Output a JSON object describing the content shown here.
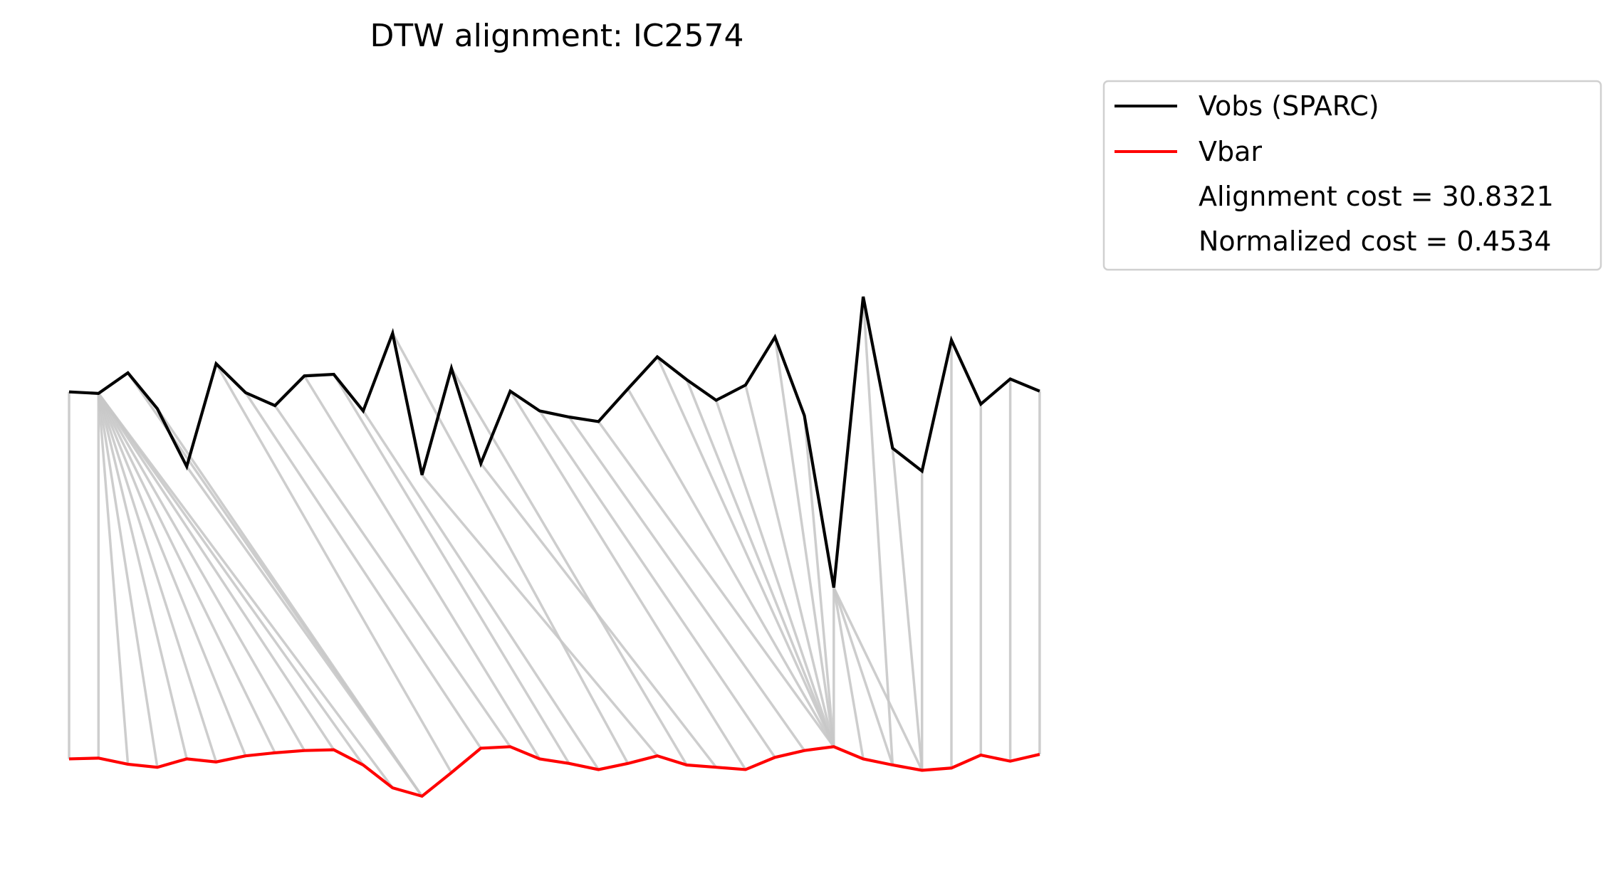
{
  "chart_data": {
    "type": "line",
    "title": "DTW alignment: IC2574",
    "xlabel": "",
    "ylabel": "",
    "axes_visible": false,
    "grid": false,
    "legend_position": "outside-top-right",
    "x": [
      0,
      1,
      2,
      3,
      4,
      5,
      6,
      7,
      8,
      9,
      10,
      11,
      12,
      13,
      14,
      15,
      16,
      17,
      18,
      19,
      20,
      21,
      22,
      23,
      24,
      25,
      26,
      27,
      28,
      29,
      30,
      31,
      32,
      33
    ],
    "series": [
      {
        "name": "Vobs (SPARC)",
        "color": "#000000",
        "values": [
          0.49,
          0.488,
          0.515,
          0.468,
          0.392,
          0.527,
          0.489,
          0.472,
          0.511,
          0.513,
          0.465,
          0.567,
          0.381,
          0.521,
          0.396,
          0.491,
          0.465,
          0.457,
          0.451,
          0.494,
          0.536,
          0.506,
          0.479,
          0.499,
          0.562,
          0.459,
          0.233,
          0.615,
          0.416,
          0.386,
          0.558,
          0.474,
          0.507,
          0.491
        ]
      },
      {
        "name": "Vbar",
        "color": "#ff0000",
        "values": [
          0.008,
          0.009,
          0.001,
          -0.003,
          0.008,
          0.004,
          0.012,
          0.016,
          0.019,
          0.02,
          0.0,
          -0.03,
          -0.041,
          -0.01,
          0.022,
          0.024,
          0.008,
          0.002,
          -0.006,
          0.002,
          0.012,
          0.0,
          -0.003,
          -0.006,
          0.01,
          0.019,
          0.024,
          0.008,
          0.0,
          -0.007,
          -0.004,
          0.013,
          0.005,
          0.014
        ]
      }
    ],
    "alignment": {
      "color": "#c8c8c8",
      "pairs": [
        [
          0,
          0
        ],
        [
          1,
          1
        ],
        [
          1,
          2
        ],
        [
          1,
          3
        ],
        [
          1,
          4
        ],
        [
          1,
          5
        ],
        [
          1,
          6
        ],
        [
          1,
          7
        ],
        [
          1,
          8
        ],
        [
          1,
          9
        ],
        [
          1,
          10
        ],
        [
          1,
          11
        ],
        [
          2,
          12
        ],
        [
          3,
          12
        ],
        [
          4,
          12
        ],
        [
          5,
          13
        ],
        [
          6,
          14
        ],
        [
          7,
          15
        ],
        [
          8,
          16
        ],
        [
          9,
          17
        ],
        [
          10,
          18
        ],
        [
          11,
          19
        ],
        [
          12,
          20
        ],
        [
          13,
          21
        ],
        [
          14,
          22
        ],
        [
          15,
          23
        ],
        [
          16,
          24
        ],
        [
          17,
          25
        ],
        [
          18,
          26
        ],
        [
          19,
          26
        ],
        [
          20,
          26
        ],
        [
          21,
          26
        ],
        [
          22,
          26
        ],
        [
          23,
          26
        ],
        [
          24,
          26
        ],
        [
          25,
          26
        ],
        [
          26,
          26
        ],
        [
          26,
          27
        ],
        [
          26,
          28
        ],
        [
          26,
          29
        ],
        [
          27,
          28
        ],
        [
          28,
          29
        ],
        [
          29,
          29
        ],
        [
          30,
          30
        ],
        [
          31,
          31
        ],
        [
          32,
          32
        ],
        [
          33,
          33
        ]
      ]
    },
    "annotations": [
      "Alignment cost = 30.8321",
      "Normalized cost = 0.4534"
    ]
  }
}
